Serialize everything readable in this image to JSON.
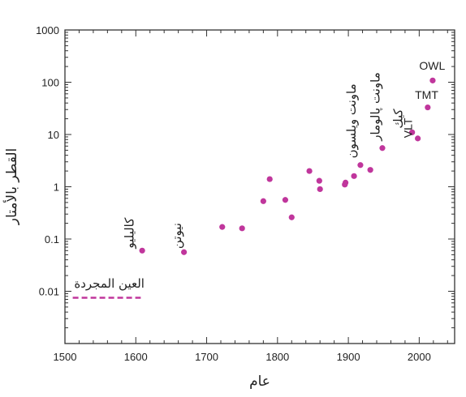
{
  "chart_data": {
    "type": "scatter",
    "xlabel": "عام",
    "ylabel": "القطر بالأمتار",
    "xlim": [
      1500,
      2050
    ],
    "ylim": [
      0.001,
      1000
    ],
    "yscale": "log",
    "xticks": [
      1500,
      1600,
      1700,
      1800,
      1900,
      2000
    ],
    "yticks": [
      {
        "value": 0.01,
        "label": "0.01"
      },
      {
        "value": 0.1,
        "label": "0.1"
      },
      {
        "value": 1,
        "label": "1"
      },
      {
        "value": 10,
        "label": "10"
      },
      {
        "value": 100,
        "label": "100"
      },
      {
        "value": 1000,
        "label": "1000"
      }
    ],
    "grid": false,
    "marker_color": "#c0369c",
    "points": [
      {
        "x": 1609,
        "y": 0.06
      },
      {
        "x": 1668,
        "y": 0.056
      },
      {
        "x": 1722,
        "y": 0.17
      },
      {
        "x": 1750,
        "y": 0.16
      },
      {
        "x": 1780,
        "y": 0.53
      },
      {
        "x": 1789,
        "y": 1.4
      },
      {
        "x": 1811,
        "y": 0.56
      },
      {
        "x": 1820,
        "y": 0.26
      },
      {
        "x": 1845,
        "y": 2.0
      },
      {
        "x": 1859,
        "y": 1.3
      },
      {
        "x": 1860,
        "y": 0.9
      },
      {
        "x": 1895,
        "y": 1.1
      },
      {
        "x": 1896,
        "y": 1.2
      },
      {
        "x": 1908,
        "y": 1.6
      },
      {
        "x": 1917,
        "y": 2.6
      },
      {
        "x": 1931,
        "y": 2.1
      },
      {
        "x": 1948,
        "y": 5.5
      },
      {
        "x": 1990,
        "y": 11
      },
      {
        "x": 1998,
        "y": 8.4
      },
      {
        "x": 2012,
        "y": 33
      },
      {
        "x": 2019,
        "y": 108
      }
    ],
    "naked_eye": {
      "x_start": 1511,
      "x_end": 1607,
      "y": 0.0075,
      "color": "#c0369c"
    },
    "annotations": [
      {
        "text": "العين المجردة",
        "x": 1513,
        "y": 0.0117,
        "rotate": 0
      },
      {
        "text": "كاليليو",
        "x": 1597,
        "y": 0.066,
        "rotate": -90
      },
      {
        "text": "نيوتن",
        "x": 1664,
        "y": 0.065,
        "rotate": -90
      },
      {
        "text": "ماونت ويلسون",
        "x": 1910,
        "y": 3.5,
        "rotate": -90
      },
      {
        "text": "ماونت پالومار",
        "x": 1944,
        "y": 7.6,
        "rotate": -90
      },
      {
        "text": "كيك",
        "x": 1976,
        "y": 13,
        "rotate": -90
      },
      {
        "text": "VLT",
        "x": 1990,
        "y": 8.6,
        "rotate": -90
      },
      {
        "text": "TMT",
        "x": 1994,
        "y": 48,
        "rotate": 0
      },
      {
        "text": "OWL",
        "x": 2000,
        "y": 175,
        "rotate": 0
      }
    ]
  }
}
